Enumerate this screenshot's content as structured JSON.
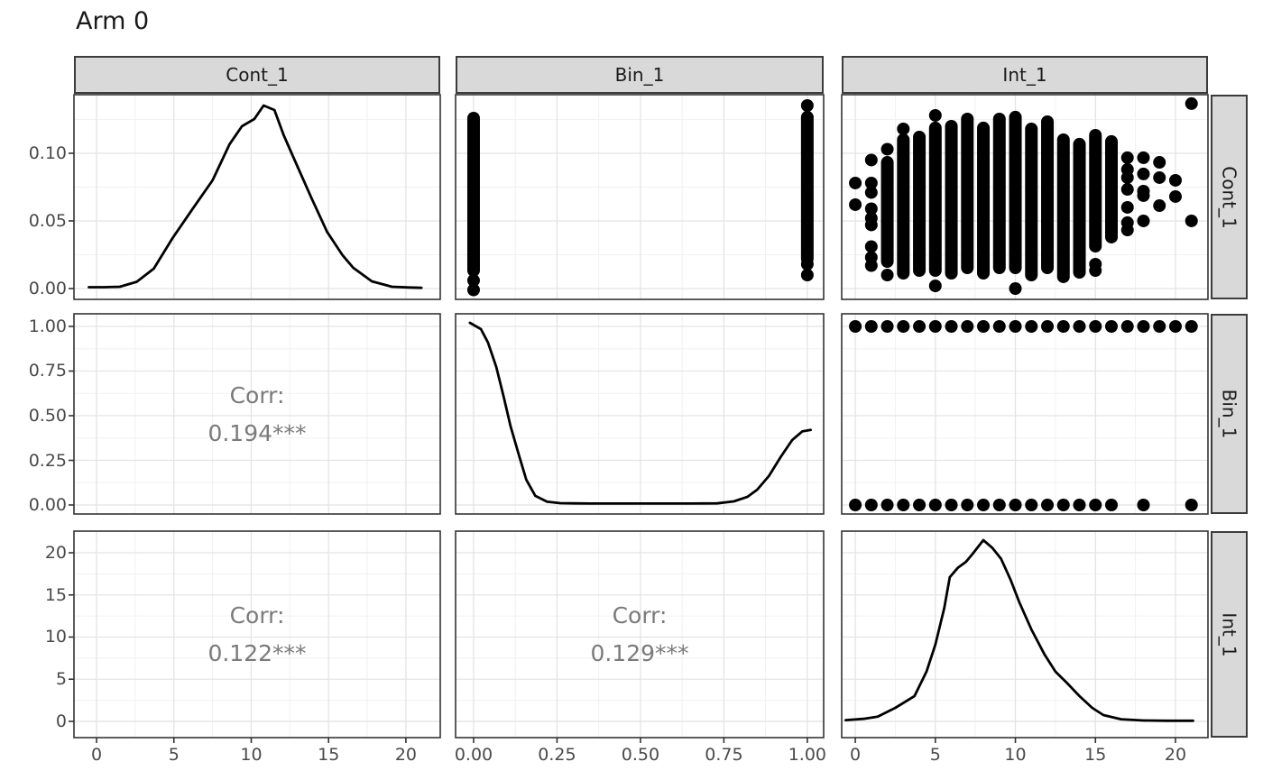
{
  "title": "Arm 0",
  "colors": {
    "point": "#000000",
    "density_line": "#000000",
    "corr_text": "#7a7a7a",
    "strip_fill": "#d9d9d9",
    "strip_border": "#3c3c3c",
    "panel_border": "#343434",
    "grid_major": "#e4e4e4",
    "grid_minor": "#f1f1f1",
    "axis_text": "#4a4a4a",
    "tick_mark": "#333333"
  },
  "chart_data": {
    "type": "pairs_matrix",
    "title": "Arm 0",
    "variables": [
      "Cont_1",
      "Bin_1",
      "Int_1"
    ],
    "grid": true,
    "col_axes": [
      {
        "labels": [
          "0",
          "5",
          "10",
          "15",
          "20"
        ],
        "label_values": [
          0,
          5,
          10,
          15,
          20
        ],
        "range": [
          -1.46,
          22.22
        ],
        "minor_step": 2.5
      },
      {
        "labels": [
          "0.00",
          "0.25",
          "0.50",
          "0.75",
          "1.00"
        ],
        "label_values": [
          0,
          0.25,
          0.5,
          0.75,
          1
        ],
        "range": [
          -0.054,
          1.049
        ],
        "minor_step": 0.125
      },
      {
        "labels": [
          "0",
          "5",
          "10",
          "15",
          "20"
        ],
        "label_values": [
          0,
          5,
          10,
          15,
          20
        ],
        "range": [
          -0.85,
          22.03
        ],
        "minor_step": 2.5
      }
    ],
    "row_axes": [
      {
        "labels": [
          "0.00",
          "0.05",
          "0.10"
        ],
        "label_values": [
          0,
          0.05,
          0.1
        ],
        "range": [
          -0.008,
          0.1433
        ],
        "minor_step": 0.025
      },
      {
        "labels": [
          "0.00",
          "0.25",
          "0.50",
          "0.75",
          "1.00"
        ],
        "label_values": [
          0,
          0.25,
          0.5,
          0.75,
          1
        ],
        "range": [
          -0.0505,
          1.0707
        ],
        "minor_step": 0.125
      },
      {
        "labels": [
          "0",
          "5",
          "10",
          "15",
          "20"
        ],
        "label_values": [
          0,
          5,
          10,
          15,
          20
        ],
        "range": [
          -1.93,
          22.57
        ],
        "minor_step": 2.5
      }
    ],
    "panels": [
      {
        "r": 0,
        "c": 0,
        "type": "density",
        "var": "Cont_1",
        "series": [
          [
            -0.5,
            0.001
          ],
          [
            0.5,
            0.001
          ],
          [
            1.5,
            0.0013
          ],
          [
            2.6,
            0.005
          ],
          [
            3.7,
            0.0147
          ],
          [
            4.9,
            0.037
          ],
          [
            6.2,
            0.0587
          ],
          [
            7.5,
            0.08
          ],
          [
            8.6,
            0.1067
          ],
          [
            9.4,
            0.12
          ],
          [
            9.8,
            0.1227
          ],
          [
            10.2,
            0.1253
          ],
          [
            10.8,
            0.1353
          ],
          [
            11.5,
            0.132
          ],
          [
            12.1,
            0.1133
          ],
          [
            13.0,
            0.09
          ],
          [
            13.9,
            0.0667
          ],
          [
            14.9,
            0.042
          ],
          [
            15.9,
            0.0247
          ],
          [
            16.6,
            0.0153
          ],
          [
            17.8,
            0.0053
          ],
          [
            19.1,
            0.0013
          ],
          [
            20.2,
            0.0008
          ],
          [
            21.0,
            0.0005
          ]
        ]
      },
      {
        "r": 0,
        "c": 1,
        "type": "dotcol",
        "x_var": "Bin_1",
        "y_var": "Cont_1",
        "columns": [
          {
            "x": 0,
            "solid": [
              0.0133,
              0.126
            ],
            "dots": [
              0.006,
              -0.001
            ]
          },
          {
            "x": 1,
            "solid": [
              0.022,
              0.1267
            ],
            "dots": [
              0.1353,
              0.018,
              0.01
            ]
          }
        ]
      },
      {
        "r": 0,
        "c": 2,
        "type": "dotcol",
        "x_var": "Int_1",
        "y_var": "Cont_1",
        "columns": [
          {
            "x": 0,
            "dots": [
              0.078,
              0.062
            ]
          },
          {
            "x": 1,
            "dots": [
              0.095,
              0.078,
              0.071,
              0.059,
              0.052,
              0.047,
              0.031,
              0.023,
              0.017
            ]
          },
          {
            "x": 2,
            "solid": [
              0.02,
              0.0933
            ],
            "dots": [
              0.103,
              0.01
            ]
          },
          {
            "x": 3,
            "solid": [
              0.0113,
              0.11
            ],
            "dots": [
              0.118
            ]
          },
          {
            "x": 4,
            "solid": [
              0.0133,
              0.112
            ]
          },
          {
            "x": 5,
            "solid": [
              0.0133,
              0.1187
            ],
            "dots": [
              0.128,
              0.002
            ]
          },
          {
            "x": 6,
            "solid": [
              0.0113,
              0.12
            ]
          },
          {
            "x": 7,
            "solid": [
              0.0153,
              0.1253
            ]
          },
          {
            "x": 8,
            "solid": [
              0.0113,
              0.1187
            ]
          },
          {
            "x": 9,
            "solid": [
              0.0153,
              0.1253
            ]
          },
          {
            "x": 10,
            "solid": [
              0.0153,
              0.1267
            ],
            "dots": [
              0.0
            ]
          },
          {
            "x": 11,
            "solid": [
              0.01,
              0.118
            ]
          },
          {
            "x": 12,
            "solid": [
              0.0153,
              0.1233
            ]
          },
          {
            "x": 13,
            "solid": [
              0.0087,
              0.11
            ]
          },
          {
            "x": 14,
            "solid": [
              0.012,
              0.1067
            ]
          },
          {
            "x": 15,
            "solid": [
              0.0313,
              0.1133
            ],
            "dots": [
              0.018,
              0.0133
            ]
          },
          {
            "x": 16,
            "solid": [
              0.038,
              0.1087
            ]
          },
          {
            "x": 17,
            "dots": [
              0.0967,
              0.088,
              0.082,
              0.0733,
              0.06,
              0.0487,
              0.0433
            ]
          },
          {
            "x": 18,
            "dots": [
              0.0967,
              0.0847,
              0.072,
              0.0687,
              0.05
            ]
          },
          {
            "x": 19,
            "dots": [
              0.0933,
              0.082,
              0.0613
            ]
          },
          {
            "x": 20,
            "dots": [
              0.08,
              0.068
            ]
          },
          {
            "x": 21,
            "dots": [
              0.1367,
              0.05
            ]
          }
        ]
      },
      {
        "r": 1,
        "c": 0,
        "type": "corr",
        "label": "Corr:",
        "value": "0.194***"
      },
      {
        "r": 1,
        "c": 1,
        "type": "density",
        "var": "Bin_1",
        "series": [
          [
            -0.011,
            1.02
          ],
          [
            0.022,
            0.985
          ],
          [
            0.043,
            0.91
          ],
          [
            0.068,
            0.773
          ],
          [
            0.09,
            0.606
          ],
          [
            0.111,
            0.44
          ],
          [
            0.136,
            0.278
          ],
          [
            0.158,
            0.141
          ],
          [
            0.185,
            0.051
          ],
          [
            0.22,
            0.018
          ],
          [
            0.26,
            0.01
          ],
          [
            0.35,
            0.008
          ],
          [
            0.5,
            0.008
          ],
          [
            0.65,
            0.008
          ],
          [
            0.73,
            0.009
          ],
          [
            0.78,
            0.02
          ],
          [
            0.82,
            0.045
          ],
          [
            0.85,
            0.086
          ],
          [
            0.885,
            0.162
          ],
          [
            0.92,
            0.268
          ],
          [
            0.955,
            0.364
          ],
          [
            0.985,
            0.412
          ],
          [
            1.01,
            0.42
          ]
        ]
      },
      {
        "r": 1,
        "c": 2,
        "type": "dotrow",
        "x_var": "Int_1",
        "y_var": "Bin_1",
        "rows": [
          {
            "y": 1,
            "xs": [
              0,
              1,
              2,
              3,
              4,
              5,
              6,
              7,
              8,
              9,
              10,
              11,
              12,
              13,
              14,
              15,
              16,
              17,
              18,
              19,
              20,
              21
            ]
          },
          {
            "y": 0,
            "xs": [
              0,
              1,
              2,
              3,
              4,
              5,
              6,
              7,
              8,
              9,
              10,
              11,
              12,
              13,
              14,
              15,
              16,
              18,
              21
            ]
          }
        ]
      },
      {
        "r": 2,
        "c": 0,
        "type": "corr",
        "label": "Corr:",
        "value": "0.122***"
      },
      {
        "r": 2,
        "c": 1,
        "type": "corr",
        "label": "Corr:",
        "value": "0.129***"
      },
      {
        "r": 2,
        "c": 2,
        "type": "density",
        "var": "Int_1",
        "series": [
          [
            -0.6,
            0.15
          ],
          [
            0.5,
            0.3
          ],
          [
            1.4,
            0.55
          ],
          [
            2.5,
            1.6
          ],
          [
            3.7,
            3.0
          ],
          [
            4.45,
            5.9
          ],
          [
            5.0,
            9.1
          ],
          [
            5.55,
            13.4
          ],
          [
            5.9,
            17.1
          ],
          [
            6.4,
            18.2
          ],
          [
            6.9,
            18.9
          ],
          [
            7.3,
            19.8
          ],
          [
            8.0,
            21.5
          ],
          [
            8.55,
            20.6
          ],
          [
            9.1,
            19.3
          ],
          [
            9.7,
            16.8
          ],
          [
            10.25,
            14.1
          ],
          [
            11.0,
            10.9
          ],
          [
            11.8,
            8.0
          ],
          [
            12.5,
            5.9
          ],
          [
            13.25,
            4.5
          ],
          [
            14.0,
            3.0
          ],
          [
            14.8,
            1.6
          ],
          [
            15.5,
            0.75
          ],
          [
            16.6,
            0.25
          ],
          [
            18.0,
            0.1
          ],
          [
            19.5,
            0.07
          ],
          [
            21.1,
            0.07
          ]
        ]
      }
    ],
    "corr_annotations": [
      {
        "pair": "Cont_1~Bin_1",
        "text": "Corr: 0.194***"
      },
      {
        "pair": "Cont_1~Int_1",
        "text": "Corr: 0.122***"
      },
      {
        "pair": "Bin_1~Int_1",
        "text": "Corr: 0.129***"
      }
    ]
  }
}
